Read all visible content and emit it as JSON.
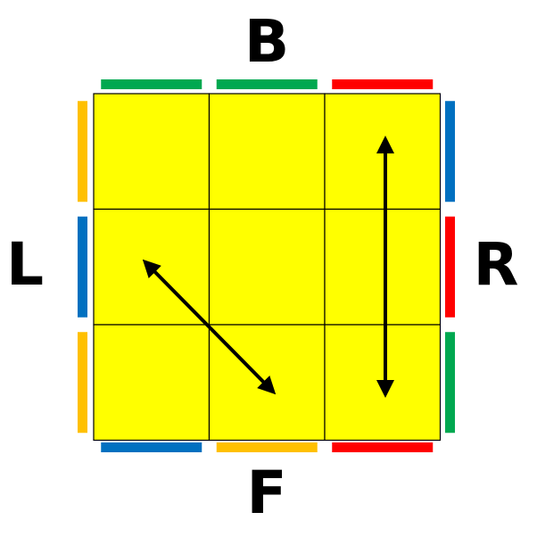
{
  "labels": {
    "back": "B",
    "front": "F",
    "left": "L",
    "right": "R"
  },
  "colors": {
    "top_face": "#ffff00",
    "green": "#00a850",
    "red": "#ff0000",
    "blue": "#0070c0",
    "orange": "#ffc000",
    "grid_line": "#000000",
    "arrow": "#000000"
  },
  "top_face": {
    "stickers": [
      [
        "yellow",
        "yellow",
        "yellow"
      ],
      [
        "yellow",
        "yellow",
        "yellow"
      ],
      [
        "yellow",
        "yellow",
        "yellow"
      ]
    ]
  },
  "side_stickers": {
    "back": [
      "green",
      "green",
      "red"
    ],
    "right": [
      "blue",
      "red",
      "green"
    ],
    "front": [
      "blue",
      "orange",
      "red"
    ],
    "left": [
      "orange",
      "blue",
      "orange"
    ]
  },
  "swaps": [
    {
      "name": "diagonal-swap",
      "from": "left-middle",
      "to": "front-middle",
      "double_headed": true
    },
    {
      "name": "vertical-swap",
      "from": "back-right",
      "to": "front-right",
      "double_headed": true
    }
  ]
}
